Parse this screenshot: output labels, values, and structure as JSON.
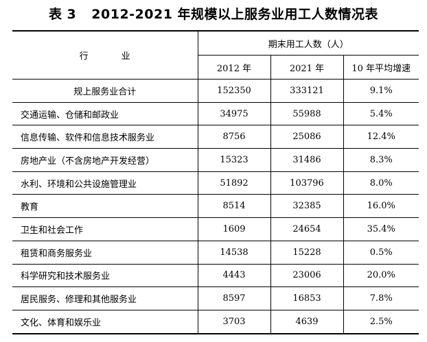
{
  "title": {
    "label": "表 3",
    "text": "2012-2021 年规模以上服务业用工人数情况表"
  },
  "table": {
    "industry_header": "行 业",
    "group_header": "期末用工人数（人）",
    "col_2012": "2012 年",
    "col_2021": "2021 年",
    "col_growth": "10 年平均增速",
    "rows": [
      {
        "name": "规上服务业合计",
        "y2012": "152350",
        "y2021": "333121",
        "growth": "9.1%"
      },
      {
        "name": "交通运输、仓储和邮政业",
        "y2012": "34975",
        "y2021": "55988",
        "growth": "5.4%"
      },
      {
        "name": "信息传输、软件和信息技术服务业",
        "y2012": "8756",
        "y2021": "25086",
        "growth": "12.4%"
      },
      {
        "name": "房地产业（不含房地产开发经营）",
        "y2012": "15323",
        "y2021": "31486",
        "growth": "8.3%"
      },
      {
        "name": "水利、环境和公共设施管理业",
        "y2012": "51892",
        "y2021": "103796",
        "growth": "8.0%"
      },
      {
        "name": "教育",
        "y2012": "8514",
        "y2021": "32385",
        "growth": "16.0%"
      },
      {
        "name": "卫生和社会工作",
        "y2012": "1609",
        "y2021": "24654",
        "growth": "35.4%"
      },
      {
        "name": "租赁和商务服务业",
        "y2012": "14538",
        "y2021": "15228",
        "growth": "0.5%"
      },
      {
        "name": "科学研究和技术服务业",
        "y2012": "4443",
        "y2021": "23006",
        "growth": "20.0%"
      },
      {
        "name": "居民服务、修理和其他服务业",
        "y2012": "8597",
        "y2021": "16853",
        "growth": "7.8%"
      },
      {
        "name": "文化、体育和娱乐业",
        "y2012": "3703",
        "y2021": "4639",
        "growth": "2.5%"
      }
    ]
  }
}
